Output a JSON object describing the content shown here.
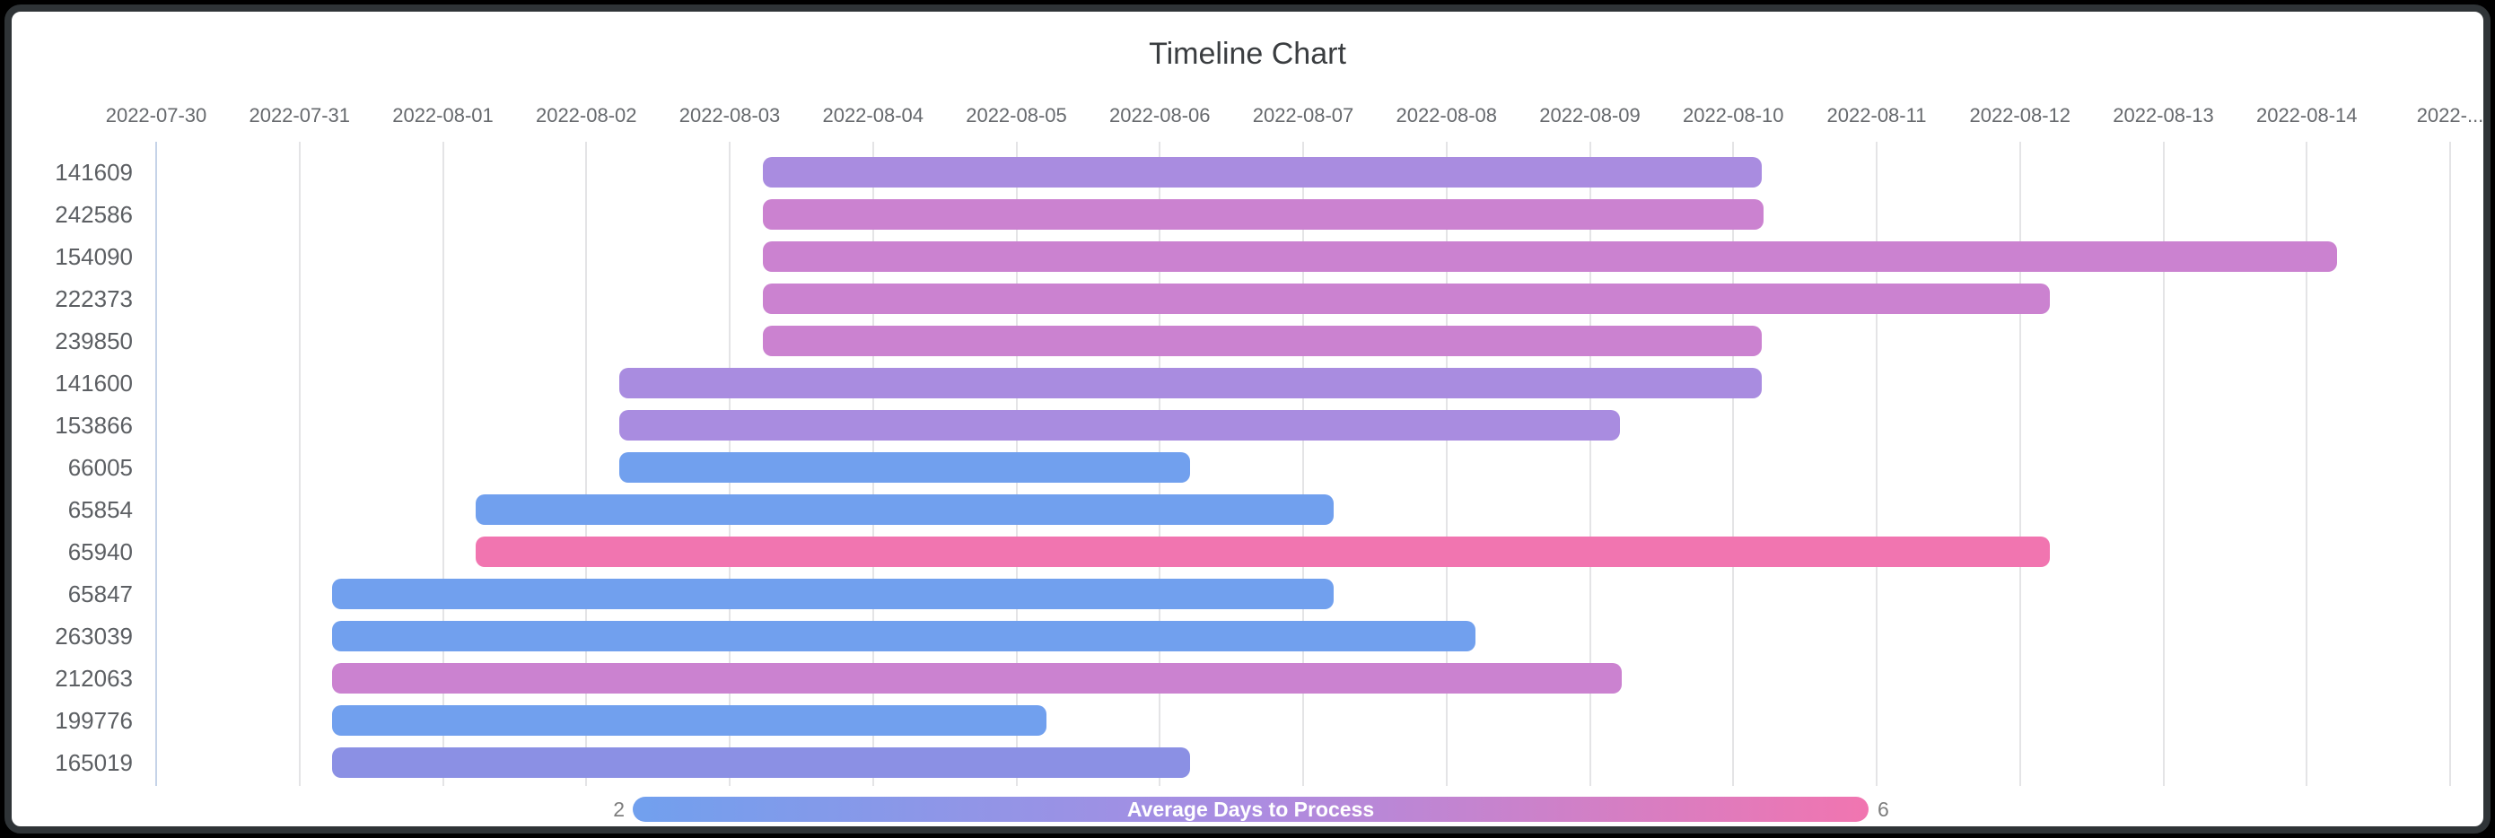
{
  "title": "Timeline Chart",
  "legend": {
    "label": "Average Days to Process",
    "min_label": "2",
    "max_label": "6",
    "min_color": "#71a0ee",
    "mid_color": "#ab8ce1",
    "max_color": "#f175b0",
    "text_color": "#ffffff"
  },
  "colors": {
    "card_background": "#ffffff",
    "frame": "#2f3437",
    "gridline": "#e4e4e6",
    "first_gridline": "#c5d3e8",
    "blue": "#71a0ee",
    "indigo": "#8b90e4",
    "purple": "#a98ce0",
    "orchid": "#cb82d0",
    "pink": "#f175b0"
  },
  "chart_data": {
    "type": "timeline",
    "title": "Timeline Chart",
    "x_axis": {
      "unit": "date",
      "range": [
        "2022-07-30",
        "2022-08-15"
      ],
      "tick_labels": [
        "2022-07-30",
        "2022-07-31",
        "2022-08-01",
        "2022-08-02",
        "2022-08-03",
        "2022-08-04",
        "2022-08-05",
        "2022-08-06",
        "2022-08-07",
        "2022-08-08",
        "2022-08-09",
        "2022-08-10",
        "2022-08-11",
        "2022-08-12",
        "2022-08-13",
        "2022-08-14",
        "2022-..."
      ],
      "grid": true
    },
    "legend": {
      "title": "Average Days to Process",
      "min": 2,
      "max": 6,
      "gradient": [
        "#71a0ee",
        "#ab8ce1",
        "#f175b0"
      ],
      "position": "bottom"
    },
    "rows": [
      {
        "label": "141609",
        "start": "2022-08-03",
        "end": "2022-08-10",
        "start_day": 4.23,
        "end_day": 11.2,
        "duration_days": 7,
        "color": "#a98ce0"
      },
      {
        "label": "242586",
        "start": "2022-08-03",
        "end": "2022-08-10",
        "start_day": 4.23,
        "end_day": 11.21,
        "duration_days": 7,
        "color": "#cb82d0"
      },
      {
        "label": "154090",
        "start": "2022-08-03",
        "end": "2022-08-14",
        "start_day": 4.23,
        "end_day": 15.21,
        "duration_days": 11,
        "color": "#cb82d0"
      },
      {
        "label": "222373",
        "start": "2022-08-03",
        "end": "2022-08-12",
        "start_day": 4.23,
        "end_day": 13.21,
        "duration_days": 9,
        "color": "#cb82d0"
      },
      {
        "label": "239850",
        "start": "2022-08-03",
        "end": "2022-08-10",
        "start_day": 4.23,
        "end_day": 11.2,
        "duration_days": 7,
        "color": "#cb82d0"
      },
      {
        "label": "141600",
        "start": "2022-08-02",
        "end": "2022-08-10",
        "start_day": 3.23,
        "end_day": 11.2,
        "duration_days": 8,
        "color": "#a98ce0"
      },
      {
        "label": "153866",
        "start": "2022-08-02",
        "end": "2022-08-09",
        "start_day": 3.23,
        "end_day": 10.21,
        "duration_days": 7,
        "color": "#a98ce0"
      },
      {
        "label": "66005",
        "start": "2022-08-02",
        "end": "2022-08-06",
        "start_day": 3.23,
        "end_day": 7.21,
        "duration_days": 4,
        "color": "#71a0ee"
      },
      {
        "label": "65854",
        "start": "2022-08-01",
        "end": "2022-08-07",
        "start_day": 2.23,
        "end_day": 8.21,
        "duration_days": 6,
        "color": "#71a0ee"
      },
      {
        "label": "65940",
        "start": "2022-08-01",
        "end": "2022-08-12",
        "start_day": 2.23,
        "end_day": 13.21,
        "duration_days": 11,
        "color": "#f175b0"
      },
      {
        "label": "65847",
        "start": "2022-07-31",
        "end": "2022-08-07",
        "start_day": 1.23,
        "end_day": 8.21,
        "duration_days": 7,
        "color": "#71a0ee"
      },
      {
        "label": "263039",
        "start": "2022-07-31",
        "end": "2022-08-08",
        "start_day": 1.23,
        "end_day": 9.2,
        "duration_days": 8,
        "color": "#71a0ee"
      },
      {
        "label": "212063",
        "start": "2022-07-31",
        "end": "2022-08-09",
        "start_day": 1.23,
        "end_day": 10.22,
        "duration_days": 9,
        "color": "#cb82d0"
      },
      {
        "label": "199776",
        "start": "2022-07-31",
        "end": "2022-08-05",
        "start_day": 1.23,
        "end_day": 6.21,
        "duration_days": 5,
        "color": "#71a0ee"
      },
      {
        "label": "165019",
        "start": "2022-07-31",
        "end": "2022-08-06",
        "start_day": 1.23,
        "end_day": 7.21,
        "duration_days": 6,
        "color": "#8b90e4"
      }
    ]
  }
}
